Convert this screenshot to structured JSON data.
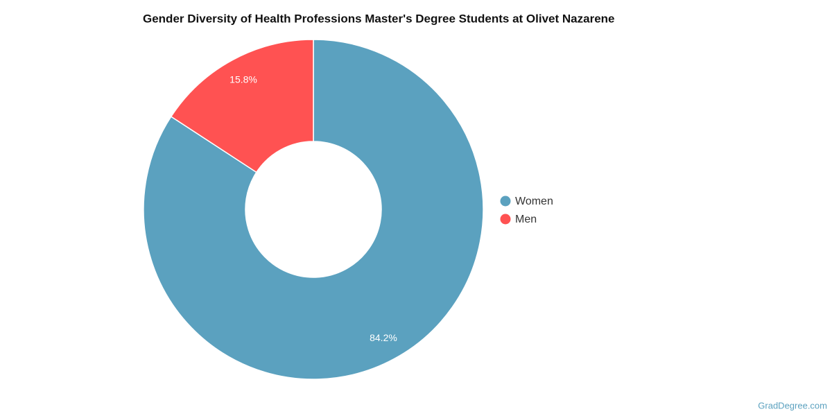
{
  "chart_data": {
    "type": "donut",
    "title": "Gender Diversity of Health Professions Master's Degree Students at Olivet Nazarene",
    "categories": [
      "Women",
      "Men"
    ],
    "values": [
      84.2,
      15.8
    ],
    "value_labels": [
      "84.2%",
      "15.8%"
    ],
    "colors": [
      "#5ba1bf",
      "#ff5252"
    ],
    "legend": "right",
    "source": "GradDegree.com"
  }
}
